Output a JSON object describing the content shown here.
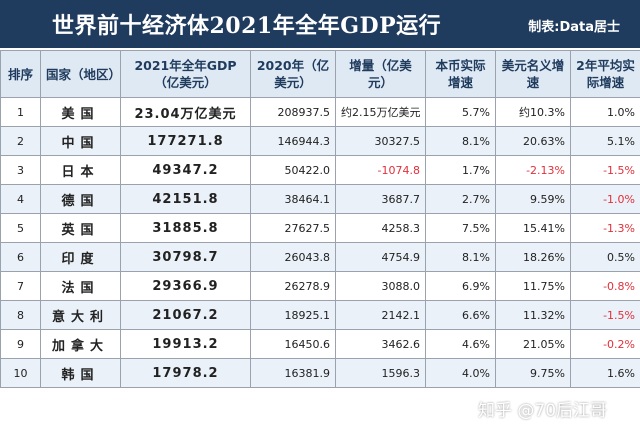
{
  "header": {
    "title": "世界前十经济体2021年全年GDP运行",
    "credit": "制表:Data居士"
  },
  "table": {
    "columns": [
      "排序",
      "国家（地区）",
      "2021年全年GDP（亿美元）",
      "2020年（亿美元）",
      "增量（亿美元）",
      "本币实际增速",
      "美元名义增速",
      "2年平均实际增速"
    ],
    "rows": [
      {
        "rank": "1",
        "country": "美国",
        "gdp2021": "23.04万亿美元",
        "gdp2020": "208937.5",
        "increment": "约2.15万亿美元",
        "real_growth": "5.7%",
        "nominal_growth": "约10.3%",
        "avg2y": "1.0%"
      },
      {
        "rank": "2",
        "country": "中国",
        "gdp2021": "177271.8",
        "gdp2020": "146944.3",
        "increment": "30327.5",
        "real_growth": "8.1%",
        "nominal_growth": "20.63%",
        "avg2y": "5.1%"
      },
      {
        "rank": "3",
        "country": "日本",
        "gdp2021": "49347.2",
        "gdp2020": "50422.0",
        "increment": "-1074.8",
        "real_growth": "1.7%",
        "nominal_growth": "-2.13%",
        "avg2y": "-1.5%"
      },
      {
        "rank": "4",
        "country": "德国",
        "gdp2021": "42151.8",
        "gdp2020": "38464.1",
        "increment": "3687.7",
        "real_growth": "2.7%",
        "nominal_growth": "9.59%",
        "avg2y": "-1.0%"
      },
      {
        "rank": "5",
        "country": "英国",
        "gdp2021": "31885.8",
        "gdp2020": "27627.5",
        "increment": "4258.3",
        "real_growth": "7.5%",
        "nominal_growth": "15.41%",
        "avg2y": "-1.3%"
      },
      {
        "rank": "6",
        "country": "印度",
        "gdp2021": "30798.7",
        "gdp2020": "26043.8",
        "increment": "4754.9",
        "real_growth": "8.1%",
        "nominal_growth": "18.26%",
        "avg2y": "0.5%"
      },
      {
        "rank": "7",
        "country": "法国",
        "gdp2021": "29366.9",
        "gdp2020": "26278.9",
        "increment": "3088.0",
        "real_growth": "6.9%",
        "nominal_growth": "11.75%",
        "avg2y": "-0.8%"
      },
      {
        "rank": "8",
        "country": "意大利",
        "gdp2021": "21067.2",
        "gdp2020": "18925.1",
        "increment": "2142.1",
        "real_growth": "6.6%",
        "nominal_growth": "11.32%",
        "avg2y": "-1.5%"
      },
      {
        "rank": "9",
        "country": "加拿大",
        "gdp2021": "19913.2",
        "gdp2020": "16450.6",
        "increment": "3462.6",
        "real_growth": "4.6%",
        "nominal_growth": "21.05%",
        "avg2y": "-0.2%"
      },
      {
        "rank": "10",
        "country": "韩国",
        "gdp2021": "17978.2",
        "gdp2020": "16381.9",
        "increment": "1596.3",
        "real_growth": "4.0%",
        "nominal_growth": "9.75%",
        "avg2y": "1.6%"
      }
    ]
  },
  "watermark": "知乎 @70后江哥",
  "colors": {
    "header_bg": "#1f3b5e",
    "col_header_bg": "#dfe9f3",
    "negative": "#e0303a"
  }
}
